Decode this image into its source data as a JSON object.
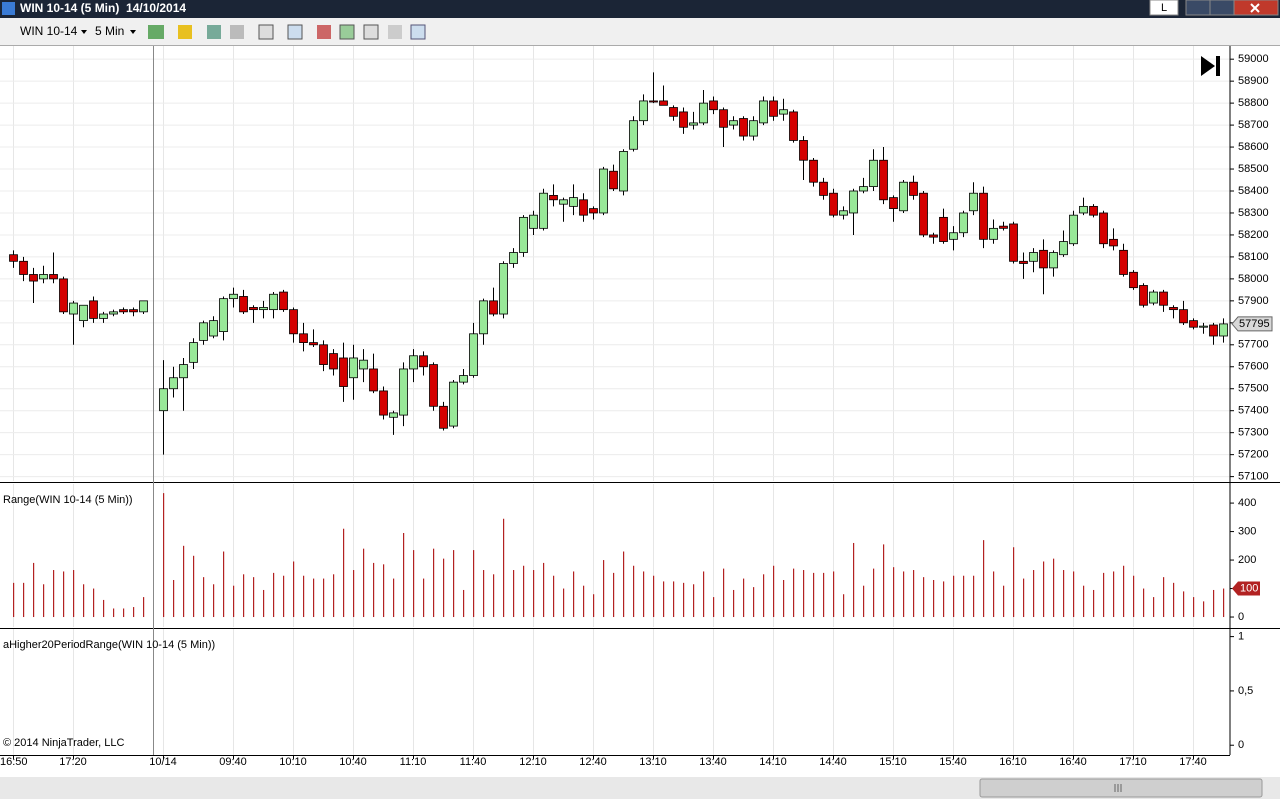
{
  "window": {
    "title": "WIN 10-14 (5 Min)  14/10/2014",
    "button": "L"
  },
  "toolbar": {
    "instrument": "WIN 10-14",
    "interval": "5 Min"
  },
  "copyright": "© 2014 NinjaTrader, LLC",
  "chart_data": [
    {
      "type": "candlestick",
      "categories": [
        "16:50",
        null,
        null,
        null,
        null,
        null,
        "17:20",
        null,
        null,
        null,
        null,
        null,
        null,
        null,
        null,
        "10/14",
        null,
        null,
        null,
        null,
        null,
        null,
        "09:40",
        null,
        null,
        null,
        null,
        null,
        "10:10",
        null,
        null,
        null,
        null,
        null,
        "10:40",
        null,
        null,
        null,
        null,
        null,
        "11:10",
        null,
        null,
        null,
        null,
        null,
        "11:40",
        null,
        null,
        null,
        null,
        null,
        "12:10",
        null,
        null,
        null,
        null,
        null,
        "12:40",
        null,
        null,
        null,
        null,
        null,
        "13:10",
        null,
        null,
        null,
        null,
        null,
        "13:40",
        null,
        null,
        null,
        null,
        null,
        "14:10",
        null,
        null,
        null,
        null,
        null,
        "14:40",
        null,
        null,
        null,
        null,
        null,
        "15:10",
        null,
        null,
        null,
        null,
        null,
        "15:40",
        null,
        null,
        null,
        null,
        null,
        "16:10",
        null,
        null,
        null,
        null,
        null,
        "16:40",
        null,
        null,
        null,
        null,
        null,
        "17:10",
        null,
        null,
        null,
        null,
        null,
        "17:40",
        null,
        null,
        null
      ],
      "open": [
        58110,
        58080,
        58020,
        58000,
        58020,
        58000,
        57840,
        57810,
        57900,
        57820,
        57840,
        57860,
        57860,
        57850,
        null,
        57400,
        57500,
        57550,
        57620,
        57720,
        57740,
        57760,
        57910,
        57920,
        57870,
        57860,
        57860,
        57940,
        57860,
        57750,
        57710,
        57700,
        57660,
        57640,
        57550,
        57590,
        57590,
        57490,
        57370,
        57380,
        57590,
        57650,
        57610,
        57420,
        57330,
        57530,
        57560,
        57750,
        57900,
        57840,
        58070,
        58120,
        58230,
        58230,
        58380,
        58340,
        58330,
        58360,
        58320,
        58300,
        58490,
        58400,
        58590,
        58720,
        58810,
        58810,
        58780,
        58760,
        58700,
        58710,
        58810,
        58770,
        58700,
        58730,
        58650,
        58710,
        58810,
        58750,
        58760,
        58630,
        58540,
        58440,
        58390,
        58290,
        58300,
        58400,
        58420,
        58540,
        58370,
        58310,
        58440,
        58390,
        58200,
        58280,
        58180,
        58210,
        58310,
        58390,
        58180,
        58240,
        58250,
        58080,
        58080,
        58130,
        58050,
        58110,
        58160,
        58300,
        58330,
        58300,
        58180,
        58130,
        58030,
        57970,
        57890,
        57940,
        57870,
        57860,
        57810,
        57780,
        57790,
        57740
      ],
      "high": [
        58130,
        58100,
        58050,
        58060,
        58120,
        58010,
        57900,
        57880,
        57920,
        57850,
        57860,
        57870,
        57870,
        57900,
        null,
        57630,
        57600,
        57640,
        57730,
        57810,
        57830,
        57920,
        57960,
        57950,
        57880,
        57900,
        57940,
        57950,
        57870,
        57800,
        57770,
        57720,
        57680,
        57710,
        57700,
        57680,
        57660,
        57510,
        57400,
        57620,
        57680,
        57670,
        57620,
        57440,
        57540,
        57590,
        57800,
        57910,
        57960,
        58080,
        58140,
        58290,
        58310,
        58410,
        58430,
        58370,
        58430,
        58390,
        58330,
        58510,
        58520,
        58590,
        58740,
        58840,
        58940,
        58880,
        58790,
        58780,
        58760,
        58860,
        58830,
        58780,
        58740,
        58740,
        58740,
        58830,
        58830,
        58820,
        58770,
        58650,
        58550,
        58460,
        58410,
        58330,
        58410,
        58460,
        58590,
        58600,
        58380,
        58450,
        58470,
        58400,
        58210,
        58320,
        58240,
        58310,
        58440,
        58420,
        58270,
        58260,
        58260,
        58120,
        58140,
        58180,
        58130,
        58220,
        58310,
        58370,
        58340,
        58310,
        58230,
        58160,
        58040,
        57980,
        57950,
        57950,
        57880,
        57900,
        57820,
        57800,
        57800,
        57820
      ],
      "low": [
        58050,
        57990,
        57890,
        57980,
        57980,
        57840,
        57700,
        57780,
        57800,
        57800,
        57830,
        57840,
        57830,
        57840,
        null,
        57200,
        57460,
        57400,
        57590,
        57700,
        57730,
        57720,
        57870,
        57840,
        57800,
        57820,
        57820,
        57850,
        57710,
        57670,
        57690,
        57580,
        57560,
        57440,
        57450,
        57530,
        57480,
        57360,
        57290,
        57330,
        57530,
        57560,
        57400,
        57310,
        57320,
        57520,
        57550,
        57700,
        57830,
        57820,
        58050,
        58100,
        58200,
        58220,
        58330,
        58260,
        58290,
        58260,
        58270,
        58290,
        58400,
        58380,
        58580,
        58700,
        58800,
        58790,
        58720,
        58660,
        58680,
        58700,
        58750,
        58600,
        58680,
        58630,
        58630,
        58700,
        58720,
        58720,
        58620,
        58450,
        58420,
        58360,
        58280,
        58270,
        58200,
        58390,
        58400,
        58340,
        58260,
        58300,
        58360,
        58190,
        58160,
        58160,
        58130,
        58190,
        58290,
        58140,
        58160,
        58220,
        58070,
        58000,
        58030,
        57930,
        58010,
        58100,
        58150,
        58290,
        58280,
        58140,
        58130,
        58010,
        57950,
        57870,
        57880,
        57850,
        57820,
        57790,
        57770,
        57750,
        57700,
        57710
      ],
      "close": [
        58080,
        58020,
        57990,
        58020,
        58000,
        57850,
        57890,
        57880,
        57820,
        57840,
        57850,
        57850,
        57850,
        57900,
        null,
        57500,
        57550,
        57610,
        57710,
        57800,
        57810,
        57910,
        57930,
        57850,
        57860,
        57870,
        57930,
        57860,
        57750,
        57710,
        57700,
        57610,
        57590,
        57510,
        57640,
        57630,
        57490,
        57380,
        57390,
        57590,
        57650,
        57600,
        57420,
        57320,
        57530,
        57560,
        57750,
        57900,
        57840,
        58070,
        58120,
        58280,
        58290,
        58390,
        58360,
        58360,
        58370,
        58290,
        58300,
        58500,
        58410,
        58580,
        58720,
        58810,
        58805,
        58790,
        58740,
        58690,
        58710,
        58800,
        58770,
        58690,
        58720,
        58650,
        58720,
        58810,
        58740,
        58770,
        58630,
        58540,
        58440,
        58380,
        58290,
        58310,
        58400,
        58420,
        58540,
        58360,
        58320,
        58440,
        58380,
        58200,
        58190,
        58170,
        58210,
        58300,
        58390,
        58180,
        58230,
        58230,
        58080,
        58070,
        58120,
        58050,
        58120,
        58170,
        58290,
        58330,
        58290,
        58160,
        58150,
        58020,
        57960,
        57880,
        57940,
        57880,
        57860,
        57800,
        57780,
        57785,
        57740,
        57795
      ],
      "up_color": "#98e898",
      "down_color": "#d40000",
      "ylim": [
        57080,
        59060
      ],
      "yticks": [
        57100,
        57200,
        57300,
        57400,
        57500,
        57600,
        57700,
        57800,
        57900,
        58000,
        58100,
        58200,
        58300,
        58400,
        58500,
        58600,
        58700,
        58800,
        58900,
        59000
      ],
      "grid": true
    },
    {
      "type": "bar",
      "title": "Range(WIN 10-14 (5 Min))",
      "values": [
        120,
        120,
        190,
        115,
        165,
        160,
        165,
        115,
        100,
        60,
        30,
        30,
        35,
        70,
        null,
        435,
        130,
        250,
        215,
        140,
        115,
        230,
        110,
        150,
        140,
        95,
        155,
        145,
        195,
        145,
        135,
        135,
        150,
        310,
        165,
        240,
        190,
        185,
        135,
        295,
        235,
        135,
        240,
        205,
        235,
        95,
        235,
        165,
        150,
        345,
        165,
        180,
        165,
        190,
        145,
        100,
        160,
        110,
        80,
        200,
        155,
        230,
        180,
        160,
        145,
        125,
        125,
        120,
        115,
        160,
        70,
        170,
        95,
        135,
        105,
        150,
        180,
        130,
        170,
        165,
        155,
        155,
        160,
        80,
        260,
        110,
        170,
        255,
        175,
        160,
        165,
        140,
        130,
        125,
        145,
        145,
        145,
        270,
        160,
        110,
        245,
        135,
        165,
        195,
        205,
        165,
        160,
        110,
        95,
        155,
        160,
        180,
        145,
        100,
        70,
        140,
        120,
        90,
        70,
        55,
        95,
        100
      ],
      "color": "#b22222",
      "ylim": [
        -35,
        467
      ],
      "yticks": [
        0,
        100,
        200,
        300,
        400
      ]
    },
    {
      "type": "line",
      "title": "aHigher20PeriodRange(WIN 10-14 (5 Min))",
      "ylim": [
        -0.09,
        1.07
      ],
      "yticks": [
        0,
        {
          "value": 0.5,
          "label": "0,5"
        },
        1
      ]
    }
  ]
}
